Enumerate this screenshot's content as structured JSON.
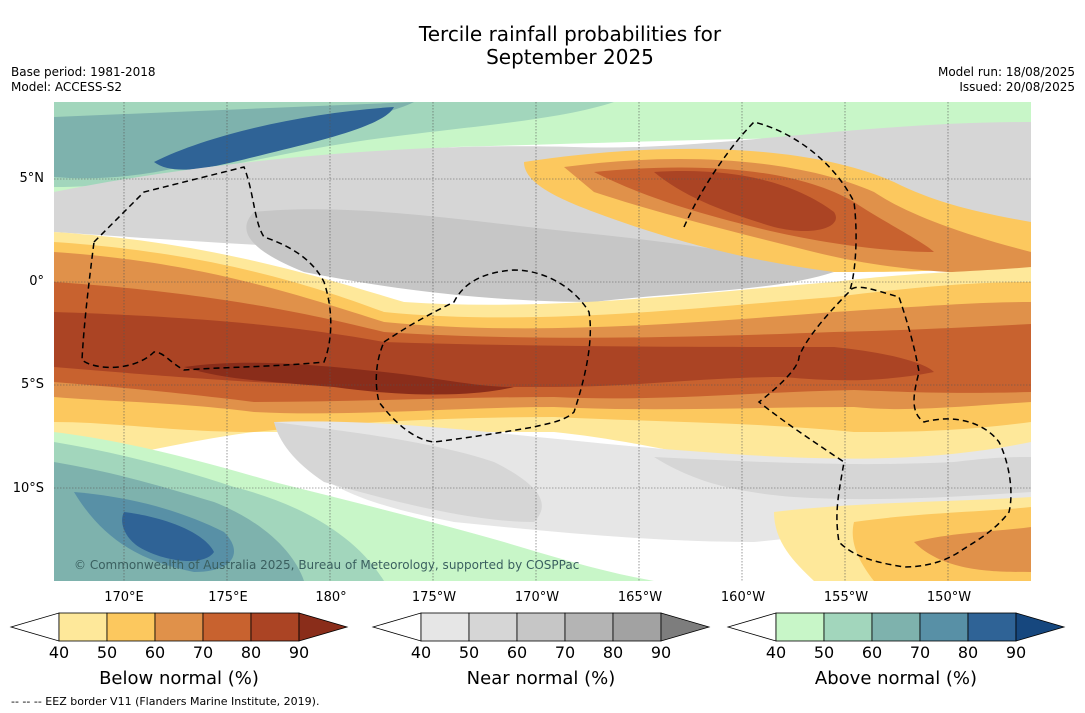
{
  "title": {
    "line1": "Tercile rainfall probabilities for",
    "line2": "September 2025"
  },
  "meta": {
    "base_period": "Base period: 1981-2018",
    "model": "Model: ACCESS-S2",
    "model_run": "Model run: 18/08/2025",
    "issued": "Issued: 20/08/2025"
  },
  "axes": {
    "lat_labels": [
      "5°N",
      "0°",
      "5°S",
      "10°S"
    ],
    "lon_labels": [
      "170°E",
      "175°E",
      "180°",
      "175°W",
      "170°W",
      "165°W",
      "160°W",
      "155°W",
      "150°W"
    ]
  },
  "copyright": "© Commonwealth of Australia 2025, Bureau of Meteorology, supported by COSPPac",
  "colorbars": [
    {
      "title": "Below normal (%)",
      "ticks": [
        "40",
        "50",
        "60",
        "70",
        "80",
        "90"
      ],
      "colors": [
        "#ffffff",
        "#fee89a",
        "#fcc85e",
        "#e0914a",
        "#c8622f",
        "#ab4424",
        "#8a2d1a"
      ]
    },
    {
      "title": "Near normal (%)",
      "ticks": [
        "40",
        "50",
        "60",
        "70",
        "80",
        "90"
      ],
      "colors": [
        "#ffffff",
        "#e6e6e6",
        "#d6d6d6",
        "#c6c6c6",
        "#b4b4b4",
        "#a2a2a2",
        "#7d7d7d"
      ]
    },
    {
      "title": "Above normal (%)",
      "ticks": [
        "40",
        "50",
        "60",
        "70",
        "80",
        "90"
      ],
      "colors": [
        "#ffffff",
        "#c8f6c8",
        "#a2d6bc",
        "#7eb2ad",
        "#5890a6",
        "#2f6396",
        "#16477e"
      ]
    }
  ],
  "footnote": "--  --  -- EEZ border V11 (Flanders Marine Institute, 2019)."
}
